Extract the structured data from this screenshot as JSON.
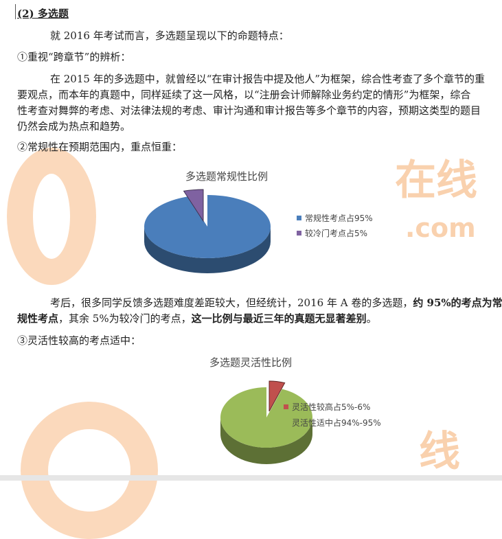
{
  "heading": "(2) 多选题",
  "intro": "就 2016 年考试而言，多选题呈现以下的命题特点：",
  "point1": {
    "title": "①重视“跨章节”的辨析：",
    "lines": [
      "在 2015 年的多选题中，就曾经以“在审计报告中提及他人”为框架，综合性考查了多个章节的重",
      "要观点，而本年的真题中，同样延续了这一风格，以“注册会计师解除业务约定的情形”为框架，综合",
      "性考查对舞弊的考虑、对法律法规的考虑、审计沟通和审计报告等多个章节的内容，预期这类型的题目",
      "仍然会成为热点和趋势。"
    ]
  },
  "point2": {
    "title": "②常规性在预期范围内，重点恒重：",
    "para_l1_a": "考后，很多同学反馈多选题难度差距较大，但经统计，2016 年 A 卷的多选题，",
    "para_l1_b": "约 95%的考点为常",
    "para_l2_a": "规性考点",
    "para_l2_b": "，其余 5%为较冷门的考点，",
    "para_l2_c": "这一比例与最近三年的真题无显著差别",
    "para_l2_d": "。"
  },
  "point3": {
    "title": "③灵活性较高的考点适中："
  },
  "watermark": {
    "text1": "在线",
    "text2": ".com"
  },
  "chart_data": [
    {
      "type": "pie",
      "title": "多选题常规性比例",
      "legend": "right",
      "slices": [
        {
          "label": "常规性考点占95%",
          "value": 95,
          "color": "#4a7ebb"
        },
        {
          "label": "较冷门考点占5%",
          "value": 5,
          "color": "#7f62a1"
        }
      ]
    },
    {
      "type": "pie",
      "title": "多选题灵活性比例",
      "legend": "right",
      "slices": [
        {
          "label": "灵活性较高占5%-6%",
          "value": 5.5,
          "color": "#c0504d"
        },
        {
          "label": "灵活性适中占94%-95%",
          "value": 94.5,
          "color": "#9bbb59"
        }
      ]
    }
  ]
}
